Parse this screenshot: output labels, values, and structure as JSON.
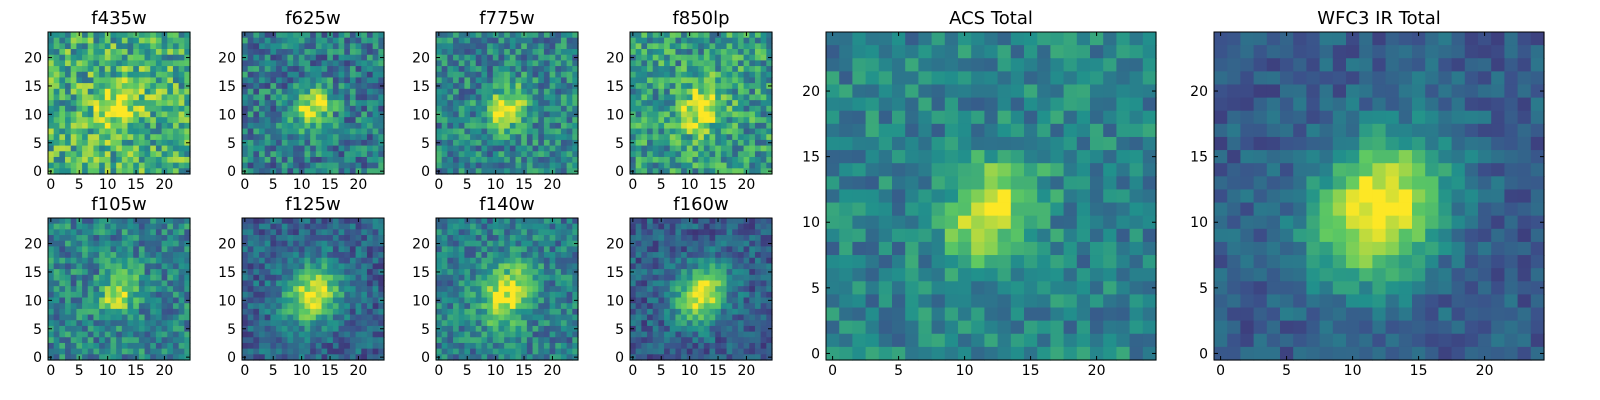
{
  "figure": {
    "description_text": null
  },
  "colormap": {
    "name": "viridis",
    "stops": [
      "#440154",
      "#3b528b",
      "#21918c",
      "#5ec962",
      "#fde725"
    ]
  },
  "panels": [
    {
      "name": "f435w",
      "title": "f435w",
      "size": "small",
      "x_ticks": [
        "0",
        "5",
        "10",
        "15",
        "20"
      ],
      "y_ticks": [
        "0",
        "5",
        "10",
        "15",
        "20"
      ],
      "source": {
        "sigma": 3.0,
        "amp": 0.35,
        "noise": 0.55,
        "base": 0.62,
        "seed": 11,
        "cx": 12,
        "cy": 11
      }
    },
    {
      "name": "f625w",
      "title": "f625w",
      "size": "small",
      "x_ticks": [
        "0",
        "5",
        "10",
        "15",
        "20"
      ],
      "y_ticks": [
        "0",
        "5",
        "10",
        "15",
        "20"
      ],
      "source": {
        "sigma": 2.2,
        "amp": 0.55,
        "noise": 0.45,
        "base": 0.42,
        "seed": 22,
        "cx": 12,
        "cy": 11
      }
    },
    {
      "name": "f775w",
      "title": "f775w",
      "size": "small",
      "x_ticks": [
        "0",
        "5",
        "10",
        "15",
        "20"
      ],
      "y_ticks": [
        "0",
        "5",
        "10",
        "15",
        "20"
      ],
      "source": {
        "sigma": 2.4,
        "amp": 0.55,
        "noise": 0.45,
        "base": 0.45,
        "seed": 33,
        "cx": 12,
        "cy": 11
      }
    },
    {
      "name": "f850lp",
      "title": "f850lp",
      "size": "small",
      "x_ticks": [
        "0",
        "5",
        "10",
        "15",
        "20"
      ],
      "y_ticks": [
        "0",
        "5",
        "10",
        "15",
        "20"
      ],
      "source": {
        "sigma": 2.6,
        "amp": 0.45,
        "noise": 0.5,
        "base": 0.55,
        "seed": 44,
        "cx": 12,
        "cy": 11
      }
    },
    {
      "name": "f105w",
      "title": "f105w",
      "size": "small",
      "x_ticks": [
        "0",
        "5",
        "10",
        "15",
        "20"
      ],
      "y_ticks": [
        "0",
        "5",
        "10",
        "15",
        "20"
      ],
      "source": {
        "sigma": 2.2,
        "amp": 0.5,
        "noise": 0.42,
        "base": 0.45,
        "seed": 55,
        "cx": 12,
        "cy": 11
      }
    },
    {
      "name": "f125w",
      "title": "f125w",
      "size": "small",
      "x_ticks": [
        "0",
        "5",
        "10",
        "15",
        "20"
      ],
      "y_ticks": [
        "0",
        "5",
        "10",
        "15",
        "20"
      ],
      "source": {
        "sigma": 3.2,
        "amp": 0.65,
        "noise": 0.32,
        "base": 0.32,
        "seed": 66,
        "cx": 12,
        "cy": 11
      }
    },
    {
      "name": "f140w",
      "title": "f140w",
      "size": "small",
      "x_ticks": [
        "0",
        "5",
        "10",
        "15",
        "20"
      ],
      "y_ticks": [
        "0",
        "5",
        "10",
        "15",
        "20"
      ],
      "source": {
        "sigma": 3.2,
        "amp": 0.55,
        "noise": 0.38,
        "base": 0.42,
        "seed": 77,
        "cx": 12,
        "cy": 11
      }
    },
    {
      "name": "f160w",
      "title": "f160w",
      "size": "small",
      "x_ticks": [
        "0",
        "5",
        "10",
        "15",
        "20"
      ],
      "y_ticks": [
        "0",
        "5",
        "10",
        "15",
        "20"
      ],
      "source": {
        "sigma": 3.0,
        "amp": 0.7,
        "noise": 0.3,
        "base": 0.3,
        "seed": 88,
        "cx": 12,
        "cy": 11
      }
    },
    {
      "name": "acs-total",
      "title": "ACS Total",
      "size": "large",
      "x_ticks": [
        "0",
        "5",
        "10",
        "15",
        "20"
      ],
      "y_ticks": [
        "0",
        "5",
        "10",
        "15",
        "20"
      ],
      "source": {
        "sigma": 2.2,
        "amp": 0.55,
        "noise": 0.32,
        "base": 0.45,
        "seed": 99,
        "cx": 12,
        "cy": 11
      }
    },
    {
      "name": "wfc3-ir-total",
      "title": "WFC3 IR Total",
      "size": "large",
      "x_ticks": [
        "0",
        "5",
        "10",
        "15",
        "20"
      ],
      "y_ticks": [
        "0",
        "5",
        "10",
        "15",
        "20"
      ],
      "source": {
        "sigma": 3.3,
        "amp": 0.75,
        "noise": 0.22,
        "base": 0.3,
        "seed": 111,
        "cx": 12,
        "cy": 11
      }
    }
  ]
}
